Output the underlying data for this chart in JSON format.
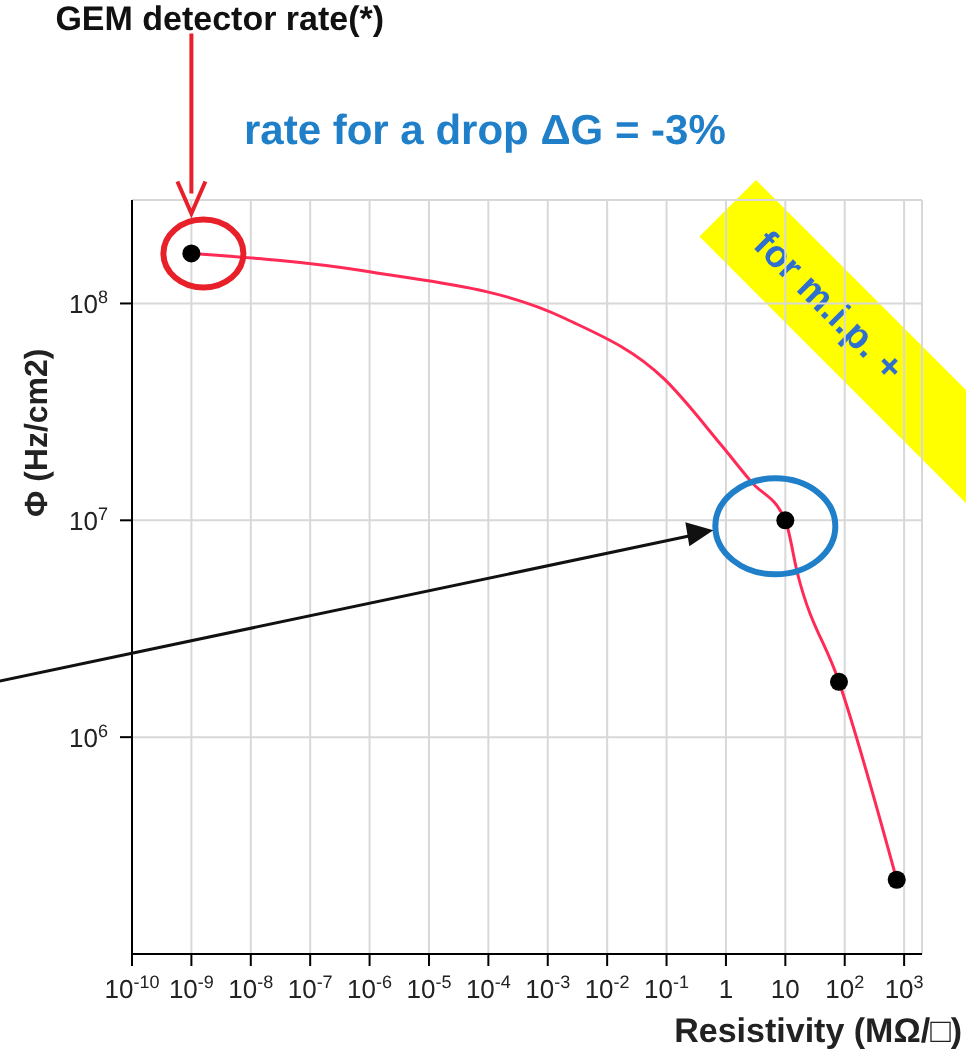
{
  "chart_data": {
    "type": "scatter",
    "title": "rate for a drop ΔG = -3%",
    "xlabel": "Resistivity (MΩ/□)",
    "ylabel": "Φ (Hz/cm2)",
    "annotations": [
      "GEM detector rate(*)",
      "for m.i.p. +"
    ],
    "series": [
      {
        "marker": "circle",
        "color": "#000000",
        "x": [
          1e-09,
          10,
          80,
          750
        ],
        "values": [
          170000000,
          10000000,
          1800000,
          220000
        ]
      },
      {
        "type": "line",
        "marker": "none",
        "color": "#ff2a55",
        "x": [
          1e-09,
          1e-06,
          0.002,
          0.09,
          0.86,
          2.7,
          10,
          16,
          80,
          750
        ],
        "values": [
          170000000,
          140000000,
          85000000,
          45000000,
          22000000,
          15000000,
          10000000,
          5700000,
          1800000,
          220000
        ]
      }
    ],
    "log": "xy",
    "xlim": [
      1e-10,
      2000
    ],
    "ylim": [
      100000,
      300000000
    ],
    "xticks": [
      {
        "value": 1e-10,
        "label": "10$^{-10}$"
      },
      {
        "value": 1e-09,
        "label": "10$^{-9}$"
      },
      {
        "value": 1e-08,
        "label": "10$^{-8}$"
      },
      {
        "value": 1e-07,
        "label": "10$^{-7}$"
      },
      {
        "value": 1e-06,
        "label": "10$^{-6}$"
      },
      {
        "value": 1e-05,
        "label": "10$^{-5}$"
      },
      {
        "value": 0.0001,
        "label": "10$^{-4}$"
      },
      {
        "value": 0.001,
        "label": "10$^{-3}$"
      },
      {
        "value": 0.01,
        "label": "10$^{-2}$"
      },
      {
        "value": 0.1,
        "label": "10$^{-1}$"
      },
      1,
      10,
      {
        "value": 100,
        "label": "10$^{2}$"
      },
      {
        "value": 1000,
        "label": "10$^{3}$"
      }
    ],
    "yticks": [
      {
        "value": 1000000,
        "label": "10$^{6}$"
      },
      {
        "value": 10000000,
        "label": "10$^{7}$"
      },
      {
        "value": 100000000,
        "label": "10$^{8}$"
      }
    ],
    "grid": true
  }
}
